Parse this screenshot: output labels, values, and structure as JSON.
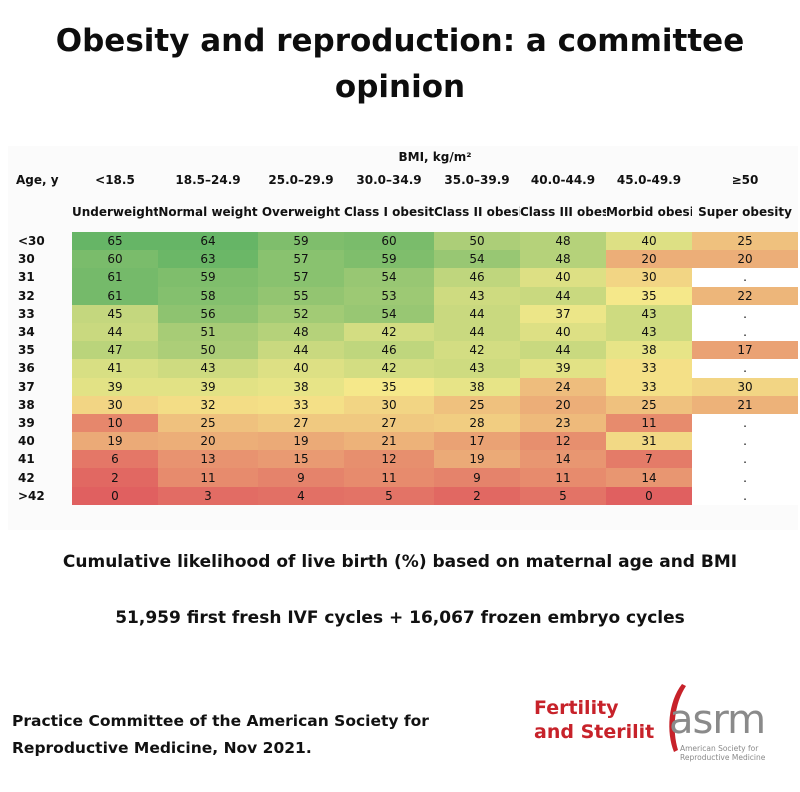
{
  "page": {
    "title": "Obesity and reproduction: a committee opinion",
    "caption_main": "Cumulative likelihood of live birth (%) based on maternal age and BMI",
    "caption_cycles": "51,959 first fresh IVF cycles + 16,067 frozen embryo cycles",
    "source_line1": "Practice Committee of the American Society for",
    "source_line2": "Reproductive Medicine, Nov 2021.",
    "logo_journal_line1": "Fertility",
    "logo_journal_line2": "and Sterilit",
    "logo_asrm": "asrm",
    "logo_asrm_sub1": "American Society for",
    "logo_asrm_sub2": "Reproductive Medicine"
  },
  "chart_data": {
    "type": "heatmap",
    "title": "",
    "x_title": "BMI, kg/m²",
    "y_title": "Age, y",
    "columns": [
      {
        "range": "<18.5",
        "label": "Underweight"
      },
      {
        "range": "18.5–24.9",
        "label": "Normal weight"
      },
      {
        "range": "25.0–29.9",
        "label": "Overweight"
      },
      {
        "range": "30.0–34.9",
        "label": "Class I obesity"
      },
      {
        "range": "35.0–39.9",
        "label": "Class II obesity"
      },
      {
        "range": "40.0-44.9",
        "label": "Class III obesity"
      },
      {
        "range": "45.0-49.9",
        "label": "Morbid obesity"
      },
      {
        "range": "≥50",
        "label": "Super obesity"
      }
    ],
    "rows": [
      "<30",
      "30",
      "31",
      "32",
      "33",
      "34",
      "35",
      "36",
      "37",
      "38",
      "39",
      "40",
      "41",
      "42",
      ">42"
    ],
    "values": [
      [
        "65",
        "64",
        "59",
        "60",
        "50",
        "48",
        "40",
        "25"
      ],
      [
        "60",
        "63",
        "57",
        "59",
        "54",
        "48",
        "20",
        "20"
      ],
      [
        "61",
        "59",
        "57",
        "54",
        "46",
        "40",
        "30",
        "."
      ],
      [
        "61",
        "58",
        "55",
        "53",
        "43",
        "44",
        "35",
        "22"
      ],
      [
        "45",
        "56",
        "52",
        "54",
        "44",
        "37",
        "43",
        "."
      ],
      [
        "44",
        "51",
        "48",
        "42",
        "44",
        "40",
        "43",
        "."
      ],
      [
        "47",
        "50",
        "44",
        "46",
        "42",
        "44",
        "38",
        "17"
      ],
      [
        "41",
        "43",
        "40",
        "42",
        "43",
        "39",
        "33",
        "."
      ],
      [
        "39",
        "39",
        "38",
        "35",
        "38",
        "24",
        "33",
        "30"
      ],
      [
        "30",
        "32",
        "33",
        "30",
        "25",
        "20",
        "25",
        "21"
      ],
      [
        "10",
        "25",
        "27",
        "27",
        "28",
        "23",
        "11",
        "."
      ],
      [
        "19",
        "20",
        "19",
        "21",
        "17",
        "12",
        "31",
        "."
      ],
      [
        "6",
        "13",
        "15",
        "12",
        "19",
        "14",
        "7",
        "."
      ],
      [
        "2",
        "11",
        "9",
        "11",
        "9",
        "11",
        "14",
        "."
      ],
      [
        "0",
        "3",
        "4",
        "5",
        "2",
        "5",
        "0",
        "."
      ]
    ],
    "color_scale": {
      "low": "#e06060",
      "mid": "#f5e98a",
      "high": "#66b566"
    }
  }
}
